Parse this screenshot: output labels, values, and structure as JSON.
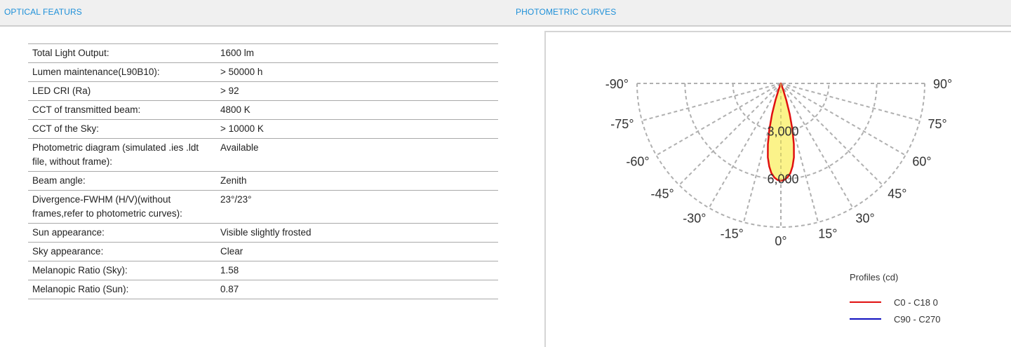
{
  "sections": {
    "left_title": "OPTICAL FEATURS",
    "right_title": "PHOTOMETRIC CURVES"
  },
  "specs": [
    {
      "label": "Total Light Output:",
      "value": "1600 lm"
    },
    {
      "label": "Lumen maintenance(L90B10):",
      "value": "> 50000 h"
    },
    {
      "label": "LED CRI (Ra)",
      "value": "> 92"
    },
    {
      "label": "CCT of transmitted beam:",
      "value": "4800 K"
    },
    {
      "label": "CCT of the Sky:",
      "value": "> 10000 K"
    },
    {
      "label": "Photometric diagram (simulated .ies .ldt file, without frame):",
      "value": "Available"
    },
    {
      "label": "Beam angle:",
      "value": "Zenith"
    },
    {
      "label": "Divergence-FWHM (H/V)(without frames,refer to photometric curves):",
      "value": "23°/23°"
    },
    {
      "label": "Sun appearance:",
      "value": "Visible slightly frosted"
    },
    {
      "label": "Sky appearance:",
      "value": "Clear"
    },
    {
      "label": "Melanopic Ratio (Sky):",
      "value": "1.58"
    },
    {
      "label": "Melanopic Ratio (Sun):",
      "value": "0.87"
    }
  ],
  "chart_data": {
    "type": "polar",
    "angle_labels_left": [
      "-90°",
      "-75°",
      "-60°",
      "-45°",
      "-30°",
      "-15°"
    ],
    "angle_labels_right": [
      "90°",
      "75°",
      "60°",
      "45°",
      "30°",
      "15°"
    ],
    "center_label": "0°",
    "radial_ticks": [
      "3,000",
      "6,000"
    ],
    "r_max": 9000,
    "legend_title": "Profiles (cd)",
    "series": [
      {
        "name": "C0 - C18 0",
        "color": "#e01010",
        "fill": "#fbf38a",
        "profile": [
          [
            0,
            6100
          ],
          [
            2,
            6050
          ],
          [
            4,
            5900
          ],
          [
            6,
            5650
          ],
          [
            8,
            5250
          ],
          [
            10,
            4700
          ],
          [
            12,
            3900
          ],
          [
            14,
            3000
          ],
          [
            16,
            2000
          ],
          [
            18,
            1100
          ],
          [
            20,
            400
          ],
          [
            22,
            0
          ]
        ]
      },
      {
        "name": "C90 - C270",
        "color": "#1010c0",
        "fill": "none",
        "profile": []
      }
    ]
  }
}
